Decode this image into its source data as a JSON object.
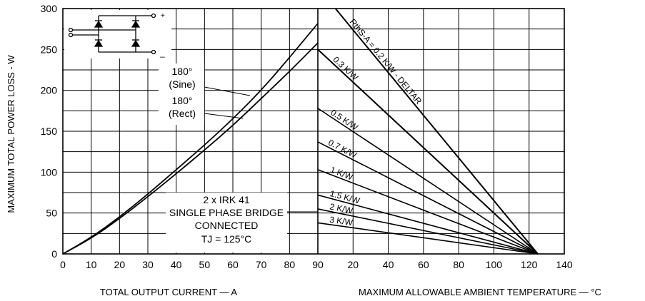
{
  "chart_data": {
    "type": "line",
    "title": "",
    "ylabel": "MAXIMUM TOTAL POWER LOSS - W",
    "ylim": [
      0,
      300
    ],
    "y_ticks": [
      "0",
      "50",
      "100",
      "150",
      "200",
      "250",
      "300"
    ],
    "grid": true,
    "panels": [
      {
        "name": "left",
        "xlabel": "TOTAL OUTPUT CURRENT — A",
        "xlim": [
          0,
          90
        ],
        "x_ticks": [
          "0",
          "10",
          "20",
          "30",
          "40",
          "50",
          "60",
          "70",
          "80",
          "90"
        ],
        "series": [
          {
            "name": "180° (Sine)",
            "x": [
              0,
              10,
              20,
              30,
              40,
              50,
              60,
              70,
              80,
              90
            ],
            "y": [
              0,
              20,
              45,
              73,
              103,
              133,
              165,
              200,
              240,
              282
            ]
          },
          {
            "name": "180° (Rect)",
            "x": [
              0,
              10,
              20,
              30,
              40,
              50,
              60,
              70,
              80,
              90
            ],
            "y": [
              0,
              19,
              43,
              70,
              98,
              127,
              157,
              190,
              223,
              258
            ]
          }
        ]
      },
      {
        "name": "right",
        "xlabel": "MAXIMUM ALLOWABLE AMBIENT TEMPERATURE — °C",
        "xlim": [
          0,
          140
        ],
        "x_ticks": [
          "20",
          "40",
          "60",
          "80",
          "100",
          "120",
          "140"
        ],
        "series": [
          {
            "name": "RthS-A = 0.2 K/W - DELTAR",
            "x": [
              10,
              125
            ],
            "y": [
              300,
              0
            ]
          },
          {
            "name": "0.3 K/W",
            "x": [
              0,
              125
            ],
            "y": [
              250,
              0
            ]
          },
          {
            "name": "0.5 K/W",
            "x": [
              0,
              125
            ],
            "y": [
              178,
              0
            ]
          },
          {
            "name": "0.7 K/W",
            "x": [
              0,
              125
            ],
            "y": [
              137,
              0
            ]
          },
          {
            "name": "1 K/W",
            "x": [
              0,
              125
            ],
            "y": [
              103,
              0
            ]
          },
          {
            "name": "1.5 K/W",
            "x": [
              0,
              125
            ],
            "y": [
              72,
              0
            ]
          },
          {
            "name": "2 K/W",
            "x": [
              0,
              125
            ],
            "y": [
              55,
              0
            ]
          },
          {
            "name": "3 K/W",
            "x": [
              0,
              125
            ],
            "y": [
              38,
              0
            ]
          }
        ]
      }
    ],
    "annotations": {
      "sine_label": [
        "180°",
        "(Sine)"
      ],
      "rect_label": [
        "180°",
        "(Rect)"
      ],
      "info_box": [
        "2 x IRK 41",
        "SINGLE PHASE BRIDGE",
        "CONNECTED",
        "TJ = 125°C"
      ]
    }
  }
}
